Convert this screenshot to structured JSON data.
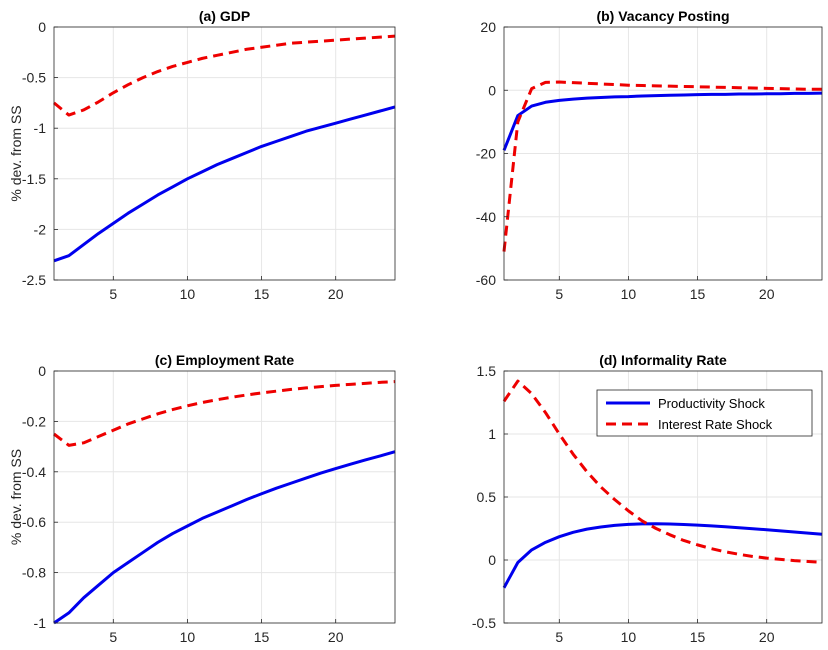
{
  "chart_data": [
    {
      "type": "line",
      "title": "(a) GDP",
      "ylabel": "% dev. from SS",
      "xlim": [
        1,
        24
      ],
      "ylim": [
        -2.5,
        0
      ],
      "xticks": [
        5,
        10,
        15,
        20
      ],
      "yticks": [
        0,
        -0.5,
        -1,
        -1.5,
        -2,
        -2.5
      ],
      "ytick_labels": [
        "0",
        "-0.5",
        "-1",
        "-1.5",
        "-2",
        "-2.5"
      ],
      "grid": true,
      "x": [
        1,
        2,
        3,
        4,
        5,
        6,
        7,
        8,
        9,
        10,
        11,
        12,
        13,
        14,
        15,
        16,
        17,
        18,
        19,
        20,
        21,
        22,
        23,
        24
      ],
      "series": [
        {
          "color": "#0000ee",
          "dash": "solid",
          "values": [
            -2.31,
            -2.26,
            -2.15,
            -2.04,
            -1.94,
            -1.84,
            -1.75,
            -1.66,
            -1.58,
            -1.5,
            -1.43,
            -1.36,
            -1.3,
            -1.24,
            -1.18,
            -1.13,
            -1.08,
            -1.03,
            -0.99,
            -0.95,
            -0.91,
            -0.87,
            -0.83,
            -0.79
          ]
        },
        {
          "color": "#ee0000",
          "dash": "dashed",
          "values": [
            -0.75,
            -0.87,
            -0.82,
            -0.74,
            -0.65,
            -0.57,
            -0.5,
            -0.44,
            -0.39,
            -0.35,
            -0.31,
            -0.28,
            -0.25,
            -0.22,
            -0.2,
            -0.18,
            -0.16,
            -0.15,
            -0.14,
            -0.13,
            -0.12,
            -0.11,
            -0.1,
            -0.09
          ]
        }
      ]
    },
    {
      "type": "line",
      "title": "(b) Vacancy Posting",
      "ylabel": "",
      "xlim": [
        1,
        24
      ],
      "ylim": [
        -60,
        20
      ],
      "xticks": [
        5,
        10,
        15,
        20
      ],
      "yticks": [
        20,
        0,
        -20,
        -40,
        -60
      ],
      "ytick_labels": [
        "20",
        "0",
        "-20",
        "-40",
        "-60"
      ],
      "grid": true,
      "x": [
        1,
        2,
        3,
        4,
        5,
        6,
        7,
        8,
        9,
        10,
        11,
        12,
        13,
        14,
        15,
        16,
        17,
        18,
        19,
        20,
        21,
        22,
        23,
        24
      ],
      "series": [
        {
          "color": "#0000ee",
          "dash": "solid",
          "values": [
            -19,
            -8,
            -5,
            -3.8,
            -3.2,
            -2.8,
            -2.5,
            -2.3,
            -2.1,
            -2.0,
            -1.8,
            -1.7,
            -1.6,
            -1.5,
            -1.4,
            -1.3,
            -1.3,
            -1.2,
            -1.2,
            -1.1,
            -1.1,
            -1.0,
            -1.0,
            -0.9
          ]
        },
        {
          "color": "#ee0000",
          "dash": "dashed",
          "values": [
            -51,
            -10,
            0.5,
            2.5,
            2.6,
            2.4,
            2.2,
            2.0,
            1.8,
            1.6,
            1.5,
            1.4,
            1.3,
            1.2,
            1.1,
            1.0,
            0.9,
            0.8,
            0.7,
            0.6,
            0.5,
            0.4,
            0.3,
            0.3
          ]
        }
      ]
    },
    {
      "type": "line",
      "title": "(c) Employment Rate",
      "ylabel": "% dev. from SS",
      "xlim": [
        1,
        24
      ],
      "ylim": [
        -1,
        0
      ],
      "xticks": [
        5,
        10,
        15,
        20
      ],
      "yticks": [
        0,
        -0.2,
        -0.4,
        -0.6,
        -0.8,
        -1
      ],
      "ytick_labels": [
        "0",
        "-0.2",
        "-0.4",
        "-0.6",
        "-0.8",
        "-1"
      ],
      "grid": true,
      "x": [
        1,
        2,
        3,
        4,
        5,
        6,
        7,
        8,
        9,
        10,
        11,
        12,
        13,
        14,
        15,
        16,
        17,
        18,
        19,
        20,
        21,
        22,
        23,
        24
      ],
      "series": [
        {
          "color": "#0000ee",
          "dash": "solid",
          "values": [
            -1.0,
            -0.96,
            -0.9,
            -0.85,
            -0.8,
            -0.76,
            -0.72,
            -0.68,
            -0.645,
            -0.615,
            -0.585,
            -0.56,
            -0.535,
            -0.51,
            -0.487,
            -0.465,
            -0.445,
            -0.425,
            -0.405,
            -0.387,
            -0.37,
            -0.353,
            -0.337,
            -0.32
          ]
        },
        {
          "color": "#ee0000",
          "dash": "dashed",
          "values": [
            -0.25,
            -0.295,
            -0.285,
            -0.26,
            -0.235,
            -0.21,
            -0.19,
            -0.17,
            -0.153,
            -0.138,
            -0.125,
            -0.114,
            -0.104,
            -0.095,
            -0.087,
            -0.08,
            -0.073,
            -0.067,
            -0.062,
            -0.057,
            -0.053,
            -0.049,
            -0.045,
            -0.042
          ]
        }
      ]
    },
    {
      "type": "line",
      "title": "(d) Informality Rate",
      "ylabel": "",
      "xlim": [
        1,
        24
      ],
      "ylim": [
        -0.5,
        1.5
      ],
      "xticks": [
        5,
        10,
        15,
        20
      ],
      "yticks": [
        1.5,
        1,
        0.5,
        0,
        -0.5
      ],
      "ytick_labels": [
        "1.5",
        "1",
        "0.5",
        "0",
        "-0.5"
      ],
      "grid": true,
      "legend": {
        "position": "top-right",
        "entries": [
          "Productivity Shock",
          "Interest Rate Shock"
        ]
      },
      "x": [
        1,
        2,
        3,
        4,
        5,
        6,
        7,
        8,
        9,
        10,
        11,
        12,
        13,
        14,
        15,
        16,
        17,
        18,
        19,
        20,
        21,
        22,
        23,
        24
      ],
      "series": [
        {
          "name": "Productivity Shock",
          "color": "#0000ee",
          "dash": "solid",
          "values": [
            -0.22,
            -0.02,
            0.08,
            0.14,
            0.185,
            0.22,
            0.245,
            0.262,
            0.275,
            0.283,
            0.287,
            0.288,
            0.286,
            0.282,
            0.277,
            0.271,
            0.264,
            0.256,
            0.248,
            0.24,
            0.231,
            0.222,
            0.213,
            0.204
          ]
        },
        {
          "name": "Interest Rate Shock",
          "color": "#ee0000",
          "dash": "dashed",
          "values": [
            1.26,
            1.42,
            1.32,
            1.17,
            1.0,
            0.84,
            0.7,
            0.58,
            0.48,
            0.39,
            0.31,
            0.25,
            0.2,
            0.155,
            0.12,
            0.09,
            0.065,
            0.045,
            0.028,
            0.015,
            0.005,
            -0.005,
            -0.012,
            -0.018
          ]
        }
      ]
    }
  ]
}
